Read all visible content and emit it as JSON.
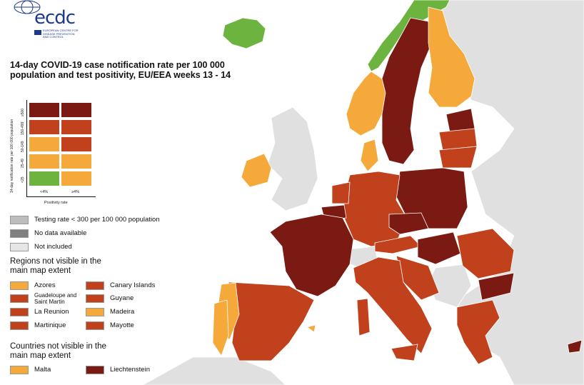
{
  "title": "14-day COVID-19 case notification rate per 100 000 population and test positivity, EU/EEA weeks 13 - 14",
  "logo": {
    "text": "ecdc",
    "subtitle": "EUROPEAN CENTRE FOR DISEASE PREVENTION AND CONTROL"
  },
  "matrix": {
    "y_axis_title": "14-day notification rate per 100 000 population",
    "y_labels": [
      "≥500",
      "150-499",
      "50-149",
      "25-49",
      "<25"
    ],
    "x_labels": [
      "<4%",
      "≥4%"
    ],
    "x_axis_title": "Positivity rate",
    "colors": [
      [
        "#7b1a12",
        "#7b1a12"
      ],
      [
        "#c0411c",
        "#c0411c"
      ],
      [
        "#f4a93a",
        "#c0411c"
      ],
      [
        "#f4a93a",
        "#f4a93a"
      ],
      [
        "#6db33f",
        "#f4a93a"
      ]
    ]
  },
  "legend_status": [
    {
      "label": "Testing rate < 300 per 100 000 population",
      "color": "#bdbdbd"
    },
    {
      "label": "No data available",
      "color": "#808080"
    },
    {
      "label": "Not included",
      "color": "#e6e6e6"
    }
  ],
  "regions_heading": "Regions not visible in the main map extent",
  "regions": [
    {
      "label": "Azores",
      "color": "#f4a93a"
    },
    {
      "label": "Canary Islands",
      "color": "#c0411c"
    },
    {
      "label": "Guadeloupe and Saint Martin",
      "color": "#c0411c"
    },
    {
      "label": "Guyane",
      "color": "#c0411c"
    },
    {
      "label": "La Reunion",
      "color": "#c0411c"
    },
    {
      "label": "Madeira",
      "color": "#f4a93a"
    },
    {
      "label": "Martinique",
      "color": "#c0411c"
    },
    {
      "label": "Mayotte",
      "color": "#c0411c"
    }
  ],
  "countries_heading": "Countries not visible in the main map extent",
  "countries": [
    {
      "label": "Malta",
      "color": "#f4a93a"
    },
    {
      "label": "Liechtenstein",
      "color": "#7b1a12"
    }
  ],
  "map_colors": {
    "sea": "#ffffff",
    "not_included": "#e0e0e0",
    "dark_red": "#7b1a12",
    "red": "#c0411c",
    "orange": "#f4a93a",
    "green": "#6db33f"
  }
}
